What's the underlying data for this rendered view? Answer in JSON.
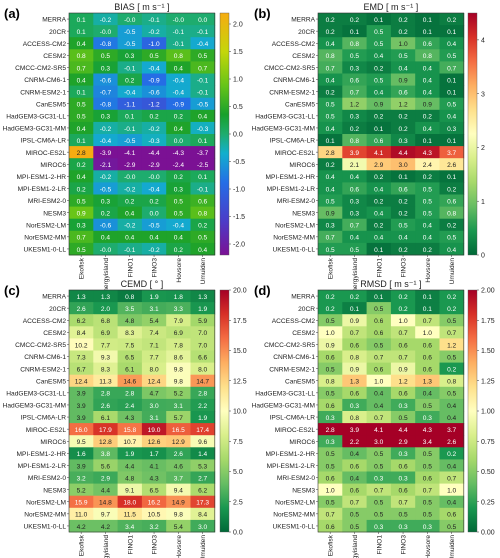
{
  "rows": [
    "MERRA",
    "20CR",
    "ACCESS-CM2",
    "CESM2",
    "CMCC-CM2-SR5",
    "CNRM-CM6-1",
    "CNRM-ESM2-1",
    "CanESM5",
    "HadGEM3-GC31-LL",
    "HadGEM3-GC31-MM",
    "IPSL-CM6A-LR",
    "MIROC-ES2L",
    "MIROC6",
    "MPI-ESM1-2-HR",
    "MPI-ESM1-2-LR",
    "MRI-ESM2-0",
    "NESM3",
    "NorESM2-LM",
    "NorESM2-MM",
    "UKESM1-0-LL"
  ],
  "columns": [
    "Ekofisk",
    "Energyisland",
    "FINO1",
    "FINO3",
    "Hovsore",
    "Umuiden"
  ],
  "chart_data": [
    {
      "type": "heatmap",
      "panel": "(a)",
      "title": "BIAS [ m s⁻¹ ]",
      "colormap": "bias",
      "vmin": -2.2,
      "vmax": 2.2,
      "colorbar_ticks": [
        "2.0",
        "1.5",
        "1.0",
        "0.5",
        "0.0",
        "-0.5",
        "-1.0",
        "-1.5",
        "-2.0"
      ],
      "colorbar_values": [
        2.0,
        1.5,
        1.0,
        0.5,
        0.0,
        -0.5,
        -1.0,
        -1.5,
        -2.0
      ],
      "values": [
        [
          "0.1",
          "-0.2",
          "-0.0",
          "-0.1",
          "-0.0",
          "0.0"
        ],
        [
          "0.1",
          "-0.0",
          "-0.5",
          "-0.2",
          "-0.1",
          "-0.1"
        ],
        [
          "0.4",
          "-0.8",
          "-0.5",
          "-1.0",
          "-0.1",
          "-0.4"
        ],
        [
          "0.8",
          "0.5",
          "0.3",
          "0.5",
          "0.8",
          "0.5"
        ],
        [
          "0.7",
          "0.3",
          "-0.1",
          "-0.4",
          "0.4",
          "0.7"
        ],
        [
          "0.4",
          "-0.6",
          "0.2",
          "-0.9",
          "-0.4",
          "-0.1"
        ],
        [
          "0.1",
          "-0.7",
          "-0.4",
          "-0.6",
          "-0.4",
          "-0.1"
        ],
        [
          "0.5",
          "-0.8",
          "-1.1",
          "-1.2",
          "-0.9",
          "-0.5"
        ],
        [
          "0.5",
          "0.3",
          "0.1",
          "0.2",
          "0.2",
          "0.4"
        ],
        [
          "0.4",
          "-0.2",
          "-0.1",
          "-0.2",
          "0.4",
          "-0.3"
        ],
        [
          "0.1",
          "-0.4",
          "-0.5",
          "-0.3",
          "0.0",
          "0.1"
        ],
        [
          "2.8",
          "-3.9",
          "-4.1",
          "-4.4",
          "-4.3",
          "-3.7"
        ],
        [
          "0.2",
          "-2.1",
          "-2.9",
          "-2.9",
          "-2.4",
          "-2.5"
        ],
        [
          "0.4",
          "-0.2",
          "-0.0",
          "-0.0",
          "0.2",
          "0.1"
        ],
        [
          "0.2",
          "-0.5",
          "-0.2",
          "-0.4",
          "0.3",
          "-0.1"
        ],
        [
          "0.5",
          "0.3",
          "0.2",
          "0.2",
          "0.5",
          "0.6"
        ],
        [
          "0.9",
          "0.2",
          "0.4",
          "0.0",
          "0.5",
          "0.8"
        ],
        [
          "0.3",
          "-0.6",
          "-0.2",
          "-0.5",
          "-0.4",
          "0.2"
        ],
        [
          "0.7",
          "0.4",
          "0.4",
          "0.4",
          "0.4",
          "0.5"
        ],
        [
          "0.5",
          "-0.0",
          "-0.1",
          "-0.2",
          "0.2",
          "0.4"
        ]
      ]
    },
    {
      "type": "heatmap",
      "panel": "(b)",
      "title": "EMD [ m s⁻¹ ]",
      "colormap": "RdYlGn_r",
      "vmin": 0.0,
      "vmax": 4.5,
      "colorbar_ticks": [
        "4",
        "3",
        "2",
        "1",
        "0"
      ],
      "colorbar_values": [
        4,
        3,
        2,
        1,
        0
      ],
      "values": [
        [
          "0.2",
          "0.2",
          "0.1",
          "0.2",
          "0.1",
          "0.2"
        ],
        [
          "0.2",
          "0.1",
          "0.5",
          "0.2",
          "0.1",
          "0.1"
        ],
        [
          "0.4",
          "0.8",
          "0.5",
          "1.0",
          "0.6",
          "0.4"
        ],
        [
          "0.8",
          "0.5",
          "0.4",
          "0.5",
          "0.8",
          "0.5"
        ],
        [
          "0.7",
          "0.3",
          "0.2",
          "0.4",
          "0.4",
          "0.7"
        ],
        [
          "0.4",
          "0.6",
          "0.5",
          "0.9",
          "0.4",
          "0.1"
        ],
        [
          "0.2",
          "0.7",
          "0.4",
          "0.6",
          "0.4",
          "0.1"
        ],
        [
          "0.5",
          "1.2",
          "0.9",
          "1.2",
          "0.9",
          "0.5"
        ],
        [
          "0.5",
          "0.3",
          "0.2",
          "0.2",
          "0.2",
          "0.4"
        ],
        [
          "0.4",
          "0.2",
          "0.1",
          "0.2",
          "0.4",
          "0.3"
        ],
        [
          "0.1",
          "0.8",
          "0.6",
          "0.3",
          "0.1",
          "0.1"
        ],
        [
          "2.8",
          "3.9",
          "4.1",
          "4.4",
          "4.3",
          "3.7"
        ],
        [
          "0.2",
          "2.1",
          "2.9",
          "3.0",
          "2.4",
          "2.6"
        ],
        [
          "0.4",
          "0.4",
          "0.2",
          "0.1",
          "0.2",
          "0.1"
        ],
        [
          "0.4",
          "0.6",
          "0.4",
          "0.6",
          "0.5",
          "0.2"
        ],
        [
          "0.5",
          "0.3",
          "0.2",
          "0.2",
          "0.5",
          "0.6"
        ],
        [
          "0.9",
          "0.3",
          "0.4",
          "0.2",
          "0.5",
          "0.8"
        ],
        [
          "0.3",
          "0.7",
          "0.2",
          "0.5",
          "0.4",
          "0.2"
        ],
        [
          "0.7",
          "0.4",
          "0.4",
          "0.4",
          "0.4",
          "0.5"
        ],
        [
          "0.5",
          "0.5",
          "0.1",
          "0.2",
          "0.2",
          "0.4"
        ]
      ]
    },
    {
      "type": "heatmap",
      "panel": "(c)",
      "title": "CEMD [ ° ]",
      "colormap": "RdYlGn_r",
      "vmin": 0.0,
      "vmax": 20.0,
      "colorbar_ticks": [
        "20.0",
        "17.5",
        "15.0",
        "12.5",
        "10.0",
        "7.5",
        "5.0",
        "2.5",
        "0.0"
      ],
      "colorbar_values": [
        20.0,
        17.5,
        15.0,
        12.5,
        10.0,
        7.5,
        5.0,
        2.5,
        0.0
      ],
      "values": [
        [
          "1.3",
          "1.3",
          "0.8",
          "1.9",
          "1.8",
          "1.3"
        ],
        [
          "2.6",
          "2.0",
          "3.5",
          "3.1",
          "3.3",
          "1.9"
        ],
        [
          "6.2",
          "6.8",
          "4.8",
          "5.4",
          "7.9",
          "5.9"
        ],
        [
          "8.4",
          "6.9",
          "8.3",
          "7.4",
          "6.9",
          "7.0"
        ],
        [
          "10.2",
          "7.7",
          "7.5",
          "7.1",
          "7.8",
          "7.0"
        ],
        [
          "7.3",
          "9.3",
          "6.5",
          "7.7",
          "8.6",
          "6.6"
        ],
        [
          "6.7",
          "8.3",
          "6.1",
          "8.0",
          "9.8",
          "8.0"
        ],
        [
          "12.4",
          "11.3",
          "14.6",
          "12.4",
          "9.8",
          "14.7"
        ],
        [
          "3.9",
          "2.8",
          "2.8",
          "4.7",
          "5.2",
          "2.8"
        ],
        [
          "3.9",
          "2.6",
          "2.4",
          "3.0",
          "3.1",
          "2.2"
        ],
        [
          "3.9",
          "6.1",
          "4.3",
          "3.1",
          "5.7",
          "1.9"
        ],
        [
          "16.0",
          "17.9",
          "15.8",
          "19.0",
          "16.5",
          "17.4"
        ],
        [
          "9.5",
          "12.8",
          "10.7",
          "12.6",
          "12.9",
          "9.6"
        ],
        [
          "1.6",
          "3.8",
          "1.9",
          "1.7",
          "2.6",
          "1.4"
        ],
        [
          "3.9",
          "5.6",
          "4.4",
          "4.1",
          "4.6",
          "5.3"
        ],
        [
          "3.2",
          "2.9",
          "4.8",
          "4.3",
          "3.7",
          "2.7"
        ],
        [
          "5.2",
          "4.4",
          "9.1",
          "6.5",
          "9.4",
          "6.2"
        ],
        [
          "15.9",
          "14.8",
          "18.0",
          "16.2",
          "14.9",
          "17.3"
        ],
        [
          "11.0",
          "9.7",
          "11.5",
          "10.5",
          "9.8",
          "8.4"
        ],
        [
          "4.2",
          "4.2",
          "3.4",
          "3.2",
          "5.4",
          "3.0"
        ]
      ]
    },
    {
      "type": "heatmap",
      "panel": "(d)",
      "title": "RMSD [ m s⁻¹ ]",
      "colormap": "RdYlGn_r",
      "vmin": 0.0,
      "vmax": 2.0,
      "colorbar_ticks": [
        "2.00",
        "1.75",
        "1.50",
        "1.25",
        "1.00",
        "0.75",
        "0.50",
        "0.25",
        "0.00"
      ],
      "colorbar_values": [
        2.0,
        1.75,
        1.5,
        1.25,
        1.0,
        0.75,
        0.5,
        0.25,
        0.0
      ],
      "values": [
        [
          "0.2",
          "0.2",
          "0.1",
          "0.2",
          "0.1",
          "0.2"
        ],
        [
          "0.2",
          "0.1",
          "0.5",
          "0.2",
          "0.1",
          "0.2"
        ],
        [
          "0.5",
          "0.9",
          "0.6",
          "1.0",
          "0.7",
          "0.5"
        ],
        [
          "1.0",
          "0.7",
          "0.6",
          "0.7",
          "1.0",
          "0.7"
        ],
        [
          "0.9",
          "0.6",
          "0.5",
          "0.6",
          "0.6",
          "1.2"
        ],
        [
          "0.6",
          "0.8",
          "0.7",
          "0.7",
          "0.6",
          "0.5"
        ],
        [
          "0.5",
          "0.9",
          "0.6",
          "0.9",
          "0.6",
          "0.2"
        ],
        [
          "0.8",
          "1.3",
          "1.0",
          "1.2",
          "1.3",
          "0.8"
        ],
        [
          "0.5",
          "0.6",
          "0.4",
          "0.6",
          "0.4",
          "0.5"
        ],
        [
          "0.6",
          "0.3",
          "0.4",
          "0.3",
          "0.5",
          "0.4"
        ],
        [
          "0.3",
          "0.8",
          "0.7",
          "0.5",
          "0.3",
          "0.4"
        ],
        [
          "2.8",
          "3.9",
          "4.1",
          "4.4",
          "4.3",
          "3.7"
        ],
        [
          "0.3",
          "2.2",
          "3.0",
          "2.9",
          "3.4",
          "2.6"
        ],
        [
          "0.5",
          "0.4",
          "0.5",
          "0.3",
          "0.5",
          "0.2"
        ],
        [
          "0.5",
          "0.6",
          "0.5",
          "0.6",
          "0.5",
          "0.4"
        ],
        [
          "0.6",
          "0.4",
          "0.3",
          "0.3",
          "0.6",
          "0.7"
        ],
        [
          "1.0",
          "0.6",
          "0.7",
          "0.6",
          "0.7",
          "1.0"
        ],
        [
          "0.5",
          "0.7",
          "0.5",
          "0.7",
          "0.5",
          "0.4"
        ],
        [
          "0.7",
          "0.5",
          "0.5",
          "0.5",
          "0.5",
          "0.6"
        ],
        [
          "0.6",
          "0.5",
          "0.3",
          "0.3",
          "0.3",
          "0.5"
        ]
      ]
    }
  ]
}
